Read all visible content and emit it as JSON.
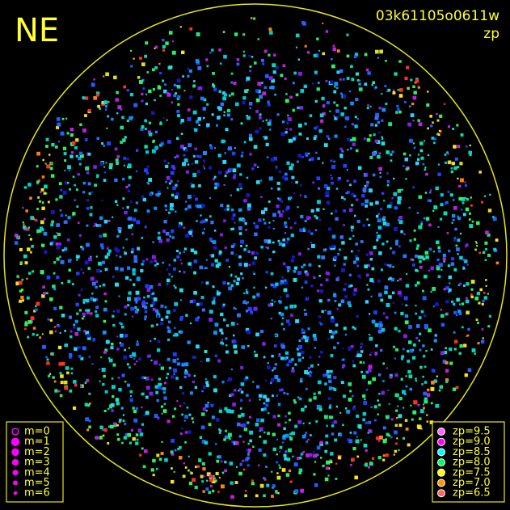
{
  "header": {
    "direction": "NE",
    "frame_id": "03k61105o0611w",
    "quantity": "zp"
  },
  "legend_magnitude": [
    "m=0",
    "m=1",
    "m=2",
    "m=3",
    "m=4",
    "m=5",
    "m=6"
  ],
  "legend_zeropoint": [
    "zp=9.5",
    "zp=9.0",
    "zp=8.5",
    "zp=8.0",
    "zp=7.5",
    "zp=7.0",
    "zp=6.5"
  ]
}
